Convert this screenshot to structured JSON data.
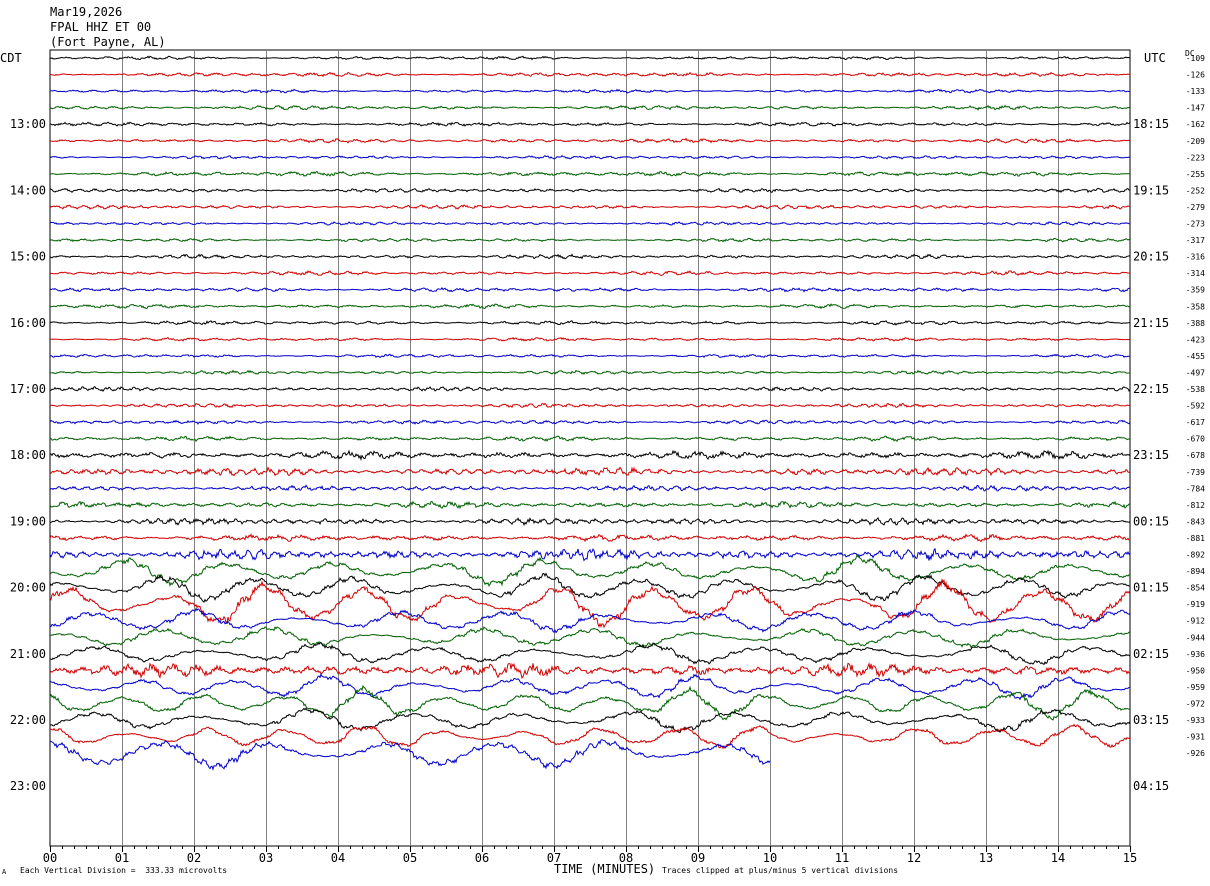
{
  "header": {
    "date": "Mar19,2026",
    "station": "FPAL HHZ ET 00",
    "location": "(Fort Payne, AL)"
  },
  "left_axis_label": "CDT",
  "right_axis_label": "UTC",
  "dc_label": "DC",
  "footer": {
    "left_note": "Each Vertical Division =  333.33 microvolts",
    "corner_mark": "A",
    "xlabel": "TIME (MINUTES)",
    "right_note": "Traces clipped at plus/minus 5 vertical divisions"
  },
  "colors": {
    "trace_cycle": [
      "#000000",
      "#d00000",
      "#0000c8",
      "#006000"
    ],
    "grid": "#808080"
  },
  "chart_data": {
    "type": "line",
    "xlabel": "TIME (MINUTES)",
    "xlim": [
      0,
      15
    ],
    "x_ticks": [
      "00",
      "01",
      "02",
      "03",
      "04",
      "05",
      "06",
      "07",
      "08",
      "09",
      "10",
      "11",
      "12",
      "13",
      "14",
      "15"
    ],
    "left_time_labels": [
      "13:00",
      "14:00",
      "15:00",
      "16:00",
      "17:00",
      "18:00",
      "19:00",
      "20:00",
      "21:00",
      "22:00",
      "23:00"
    ],
    "right_time_labels": [
      "18:15",
      "19:15",
      "20:15",
      "21:15",
      "22:15",
      "23:15",
      "00:15",
      "01:15",
      "02:15",
      "03:15",
      "04:15"
    ],
    "dc_offsets": [
      "-109",
      "-126",
      "-133",
      "-147",
      "-162",
      "-209",
      "-223",
      "-255",
      "-252",
      "-279",
      "-273",
      "-317",
      "-316",
      "-314",
      "-359",
      "-358",
      "-388",
      "-423",
      "-455",
      "-497",
      "-538",
      "-592",
      "-617",
      "-670",
      "-678",
      "-739",
      "-784",
      "-812",
      "-843",
      "-881",
      "-892",
      "-894",
      "-854",
      "-919",
      "-912",
      "-944",
      "-936",
      "-950",
      "-959",
      "-972",
      "-933",
      "-931",
      "-926"
    ],
    "trace_amplitude": [
      0.25,
      0.3,
      0.25,
      0.3,
      0.3,
      0.3,
      0.25,
      0.35,
      0.3,
      0.3,
      0.25,
      0.25,
      0.3,
      0.3,
      0.3,
      0.3,
      0.3,
      0.25,
      0.25,
      0.25,
      0.3,
      0.3,
      0.3,
      0.35,
      0.6,
      0.6,
      0.4,
      0.45,
      0.5,
      0.5,
      0.8,
      1.5,
      1.5,
      2.5,
      1.3,
      1.2,
      1.2,
      1.0,
      1.3,
      1.6,
      1.3,
      1.3,
      1.8
    ],
    "last_trace_end_minute": 10.0
  }
}
